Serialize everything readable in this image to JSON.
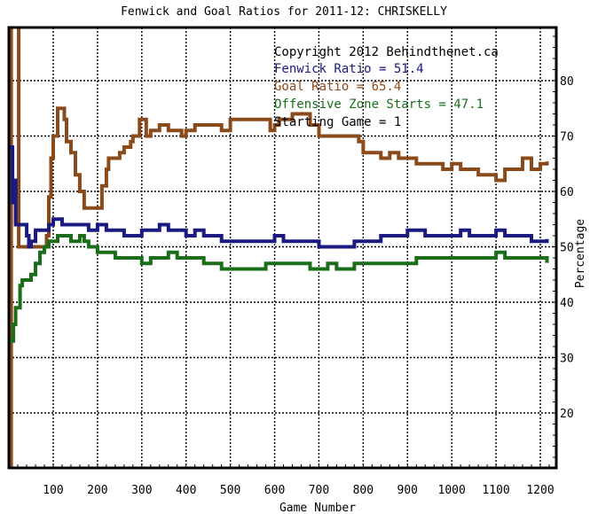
{
  "chart_data": {
    "type": "line",
    "title": "Fenwick and Goal Ratios for 2011-12: CHRISKELLY",
    "xlabel": "Game Number",
    "ylabel": "Percentage",
    "xlim": [
      0,
      1230
    ],
    "ylim": [
      10,
      95
    ],
    "x_ticks": [
      100,
      200,
      300,
      400,
      500,
      600,
      700,
      800,
      900,
      1000,
      1100,
      1200
    ],
    "y_ticks": [
      20,
      30,
      40,
      50,
      60,
      70,
      80
    ],
    "y_axis_side": "right",
    "grid": true,
    "annotations": [
      {
        "text": "Copyright 2012 Behindthenet.ca",
        "color": "#000000"
      },
      {
        "text": "Fenwick Ratio = 51.4",
        "color": "#1a1a80"
      },
      {
        "text": "Goal Ratio = 65.4",
        "color": "#8b4a1a"
      },
      {
        "text": "Offensive Zone Starts = 47.1",
        "color": "#1a6e1a"
      },
      {
        "text": "Starting Game = 1",
        "color": "#000000"
      }
    ],
    "series": [
      {
        "name": "Goal Ratio",
        "color": "#8b4a1a",
        "x": [
          1,
          5,
          10,
          18,
          22,
          25,
          30,
          40,
          50,
          60,
          70,
          78,
          85,
          90,
          95,
          100,
          110,
          120,
          125,
          130,
          140,
          150,
          160,
          170,
          180,
          190,
          200,
          210,
          220,
          225,
          240,
          250,
          260,
          270,
          275,
          280,
          290,
          295,
          300,
          310,
          320,
          330,
          340,
          350,
          360,
          370,
          380,
          390,
          400,
          420,
          440,
          460,
          480,
          500,
          520,
          540,
          560,
          580,
          590,
          600,
          610,
          620,
          630,
          640,
          660,
          680,
          700,
          720,
          740,
          760,
          780,
          790,
          800,
          820,
          840,
          860,
          880,
          900,
          920,
          940,
          960,
          980,
          1000,
          1020,
          1040,
          1060,
          1080,
          1100,
          1120,
          1140,
          1160,
          1180,
          1200,
          1215
        ],
        "values": [
          0,
          100,
          100,
          100,
          50,
          50,
          50,
          50,
          50,
          50,
          50,
          50,
          52,
          59,
          66,
          70,
          75,
          75,
          73,
          69,
          67,
          63,
          60,
          57,
          57,
          57,
          57,
          61,
          64,
          66,
          66,
          67,
          68,
          68,
          69,
          70,
          70,
          73,
          73,
          70,
          71,
          71,
          72,
          72,
          71,
          71,
          71,
          70,
          71,
          72,
          72,
          72,
          71,
          73,
          73,
          73,
          73,
          73,
          71,
          72,
          73,
          73,
          73,
          74,
          74,
          72,
          70,
          70,
          70,
          70,
          70,
          69,
          67,
          67,
          66,
          67,
          66,
          66,
          65,
          65,
          65,
          64,
          65,
          64,
          64,
          63,
          63,
          62,
          64,
          64,
          66,
          64,
          65,
          65.4
        ]
      },
      {
        "name": "Fenwick Ratio",
        "color": "#1a1a80",
        "x": [
          1,
          5,
          8,
          12,
          15,
          20,
          25,
          30,
          35,
          40,
          45,
          50,
          60,
          70,
          80,
          90,
          100,
          110,
          120,
          140,
          160,
          180,
          200,
          220,
          240,
          260,
          280,
          300,
          320,
          340,
          360,
          380,
          400,
          420,
          440,
          460,
          480,
          500,
          520,
          540,
          560,
          580,
          600,
          620,
          640,
          660,
          680,
          700,
          720,
          740,
          760,
          780,
          800,
          820,
          840,
          860,
          880,
          900,
          920,
          940,
          960,
          980,
          1000,
          1020,
          1040,
          1060,
          1080,
          1100,
          1120,
          1140,
          1160,
          1180,
          1200,
          1215
        ],
        "values": [
          68,
          68,
          58,
          62,
          54,
          54,
          54,
          54,
          54,
          52,
          50,
          51,
          53,
          53,
          53,
          54,
          55,
          55,
          54,
          54,
          54,
          53,
          54,
          53,
          53,
          52,
          52,
          53,
          53,
          54,
          53,
          53,
          52,
          53,
          52,
          52,
          51,
          51,
          51,
          51,
          51,
          51,
          52,
          51,
          51,
          51,
          51,
          50,
          50,
          50,
          50,
          51,
          51,
          51,
          52,
          52,
          52,
          53,
          53,
          52,
          52,
          52,
          52,
          53,
          52,
          52,
          52,
          53,
          52,
          52,
          52,
          51,
          51,
          51.4
        ]
      },
      {
        "name": "Offensive Zone Starts",
        "color": "#1a6e1a",
        "x": [
          1,
          5,
          10,
          15,
          20,
          25,
          30,
          40,
          50,
          60,
          70,
          80,
          90,
          100,
          110,
          120,
          130,
          140,
          150,
          160,
          170,
          180,
          200,
          220,
          240,
          260,
          280,
          300,
          320,
          340,
          360,
          380,
          400,
          420,
          440,
          460,
          480,
          500,
          520,
          540,
          560,
          580,
          600,
          620,
          640,
          660,
          680,
          700,
          720,
          740,
          760,
          780,
          800,
          820,
          840,
          860,
          880,
          900,
          920,
          940,
          960,
          980,
          1000,
          1020,
          1040,
          1060,
          1080,
          1100,
          1120,
          1140,
          1160,
          1180,
          1200,
          1215
        ],
        "values": [
          33,
          33,
          36,
          39,
          39,
          43,
          44,
          44,
          45,
          47,
          49,
          50,
          51,
          51,
          52,
          52,
          52,
          51,
          51,
          52,
          51,
          50,
          49,
          49,
          48,
          48,
          48,
          47,
          48,
          48,
          49,
          48,
          48,
          48,
          47,
          47,
          46,
          46,
          46,
          46,
          46,
          47,
          47,
          47,
          47,
          47,
          46,
          46,
          47,
          46,
          46,
          47,
          47,
          47,
          47,
          47,
          47,
          47,
          48,
          48,
          48,
          48,
          48,
          48,
          48,
          48,
          48,
          49,
          48,
          48,
          48,
          48,
          48,
          47.1
        ]
      }
    ]
  }
}
